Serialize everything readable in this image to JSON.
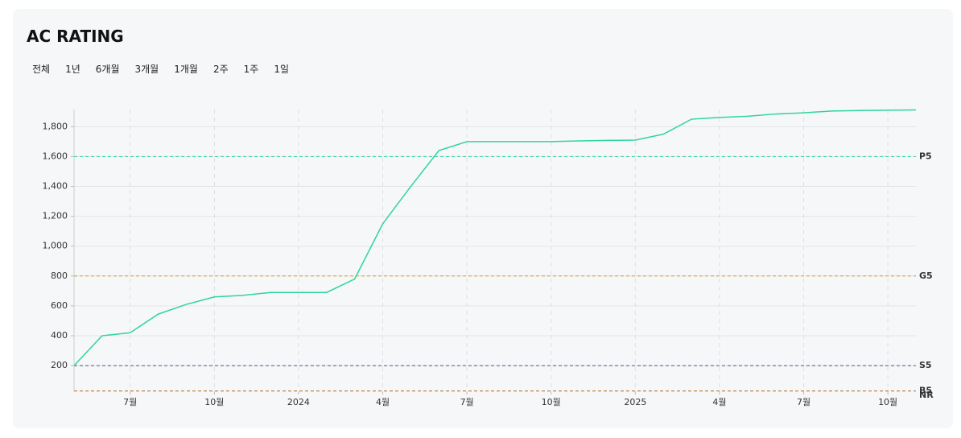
{
  "header": {
    "title": "AC RATING"
  },
  "ranges": [
    "전체",
    "1년",
    "6개월",
    "3개월",
    "1개월",
    "2주",
    "1주",
    "1일"
  ],
  "chart_data": {
    "type": "line",
    "x": [
      "2023-05",
      "2023-06",
      "2023-07",
      "2023-08",
      "2023-09",
      "2023-10",
      "2023-11",
      "2023-12",
      "2024-01",
      "2024-02",
      "2024-03",
      "2024-04",
      "2024-05",
      "2024-06",
      "2024-07",
      "2024-08",
      "2024-09",
      "2024-10",
      "2024-11",
      "2024-12",
      "2025-01",
      "2025-02",
      "2025-03",
      "2025-04",
      "2025-05",
      "2025-06",
      "2025-07",
      "2025-08",
      "2025-09",
      "2025-10",
      "2025-11"
    ],
    "series": [
      {
        "color": "#2fd69a",
        "values": [
          200,
          400,
          420,
          545,
          610,
          660,
          670,
          690,
          690,
          690,
          780,
          1150,
          1400,
          1640,
          1700,
          1700,
          1700,
          1700,
          1705,
          1708,
          1710,
          1750,
          1850,
          1862,
          1870,
          1885,
          1893,
          1905,
          1908,
          1910,
          1912
        ]
      }
    ],
    "xlim": [
      "2023-05",
      "2025-11"
    ],
    "xticks": [
      {
        "value": "2023-07",
        "label": "7월"
      },
      {
        "value": "2023-10",
        "label": "10월"
      },
      {
        "value": "2024-01",
        "label": "2024"
      },
      {
        "value": "2024-04",
        "label": "4월"
      },
      {
        "value": "2024-07",
        "label": "7월"
      },
      {
        "value": "2024-10",
        "label": "10월"
      },
      {
        "value": "2025-01",
        "label": "2025"
      },
      {
        "value": "2025-04",
        "label": "4월"
      },
      {
        "value": "2025-07",
        "label": "7월"
      },
      {
        "value": "2025-10",
        "label": "10월"
      }
    ],
    "ylim": [
      28,
      1915
    ],
    "yticks": [
      200,
      400,
      600,
      800,
      {
        "value": 1000,
        "label": "1,000"
      },
      {
        "value": 1200,
        "label": "1,200"
      },
      {
        "value": 1400,
        "label": "1,400"
      },
      {
        "value": 1600,
        "label": "1,600"
      },
      {
        "value": 1800,
        "label": "1,800"
      }
    ],
    "grid": true,
    "reference_lines": [
      {
        "name": "P5",
        "value": 1600,
        "color": "#2fd69a"
      },
      {
        "name": "G5",
        "value": 800,
        "color": "#d99a1e"
      },
      {
        "name": "S5",
        "value": 200,
        "color": "#4a5d7a"
      },
      {
        "name": "B5",
        "value": 30,
        "color": "#b5651d"
      },
      {
        "name": "NR",
        "value": 0,
        "color": "#333333"
      }
    ]
  }
}
